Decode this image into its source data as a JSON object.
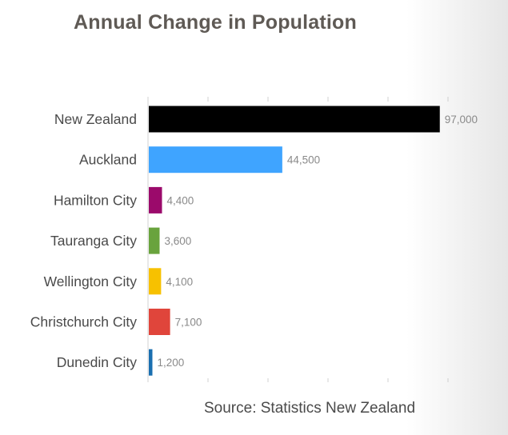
{
  "chart_data": {
    "type": "bar",
    "orientation": "horizontal",
    "title": "Annual Change in Population",
    "source": "Source: Statistics New Zealand",
    "categories": [
      "New Zealand",
      "Auckland",
      "Hamilton City",
      "Tauranga City",
      "Wellington City",
      "Christchurch City",
      "Dunedin City"
    ],
    "values": [
      97000,
      44500,
      4400,
      3600,
      4100,
      7100,
      1200
    ],
    "value_labels": [
      "97,000",
      "44,500",
      "4,400",
      "3,600",
      "4,100",
      "7,100",
      "1,200"
    ],
    "colors": [
      "#000000",
      "#3fa4ff",
      "#9b0a6b",
      "#69a33d",
      "#f7c100",
      "#e0453b",
      "#1a6fb0"
    ],
    "xlim": [
      0,
      100000
    ],
    "xlabel": "",
    "ylabel": "",
    "grid": false
  }
}
